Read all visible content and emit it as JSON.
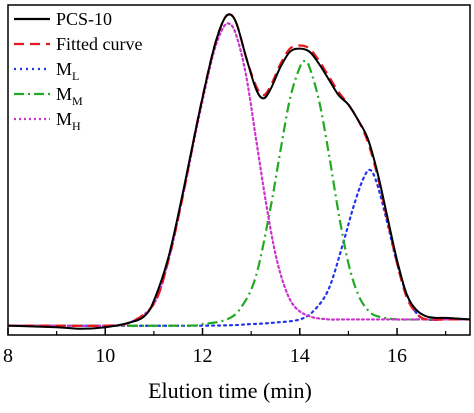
{
  "chart_data": {
    "type": "line",
    "title": "",
    "xlabel": "Elution time (min)",
    "ylabel": "",
    "xlim": [
      8,
      17.5
    ],
    "ylim": [
      -0.03,
      1.03
    ],
    "x_ticks": [
      8,
      10,
      12,
      14,
      16
    ],
    "x_tick_labels": [
      "8",
      "10",
      "12",
      "14",
      "16"
    ],
    "grid": false,
    "legend_position": "top-left",
    "series": [
      {
        "name": "PCS-10",
        "color": "#000000",
        "dash": "solid",
        "x": [
          8.0,
          9.0,
          9.5,
          10.0,
          10.5,
          10.8,
          11.0,
          11.3,
          11.6,
          11.9,
          12.2,
          12.4,
          12.55,
          12.7,
          12.9,
          13.1,
          13.25,
          13.4,
          13.6,
          13.8,
          14.0,
          14.2,
          14.4,
          14.6,
          14.8,
          15.0,
          15.2,
          15.4,
          15.6,
          15.8,
          16.0,
          16.2,
          16.4,
          16.6,
          16.8,
          17.0,
          17.5
        ],
        "y": [
          0.0,
          -0.005,
          -0.01,
          -0.005,
          0.01,
          0.03,
          0.08,
          0.22,
          0.43,
          0.66,
          0.87,
          0.97,
          1.0,
          0.97,
          0.86,
          0.76,
          0.73,
          0.76,
          0.83,
          0.88,
          0.89,
          0.88,
          0.84,
          0.79,
          0.74,
          0.71,
          0.66,
          0.6,
          0.49,
          0.35,
          0.21,
          0.1,
          0.05,
          0.03,
          0.025,
          0.025,
          0.02
        ]
      },
      {
        "name": "Fitted curve",
        "color": "#e8161f",
        "dash": "10,6",
        "x": [
          8.0,
          9.0,
          10.0,
          10.5,
          11.0,
          11.3,
          11.6,
          11.9,
          12.2,
          12.4,
          12.55,
          12.7,
          12.9,
          13.1,
          13.25,
          13.4,
          13.6,
          13.8,
          14.0,
          14.2,
          14.4,
          14.6,
          14.8,
          15.0,
          15.2,
          15.4,
          15.6,
          15.8,
          16.0,
          16.2,
          16.4,
          16.6,
          17.0,
          17.5
        ],
        "y": [
          0.0,
          0.0,
          0.0,
          0.01,
          0.07,
          0.21,
          0.42,
          0.66,
          0.87,
          0.97,
          1.0,
          0.97,
          0.86,
          0.77,
          0.74,
          0.77,
          0.84,
          0.89,
          0.9,
          0.89,
          0.85,
          0.8,
          0.75,
          0.71,
          0.66,
          0.59,
          0.48,
          0.34,
          0.2,
          0.09,
          0.04,
          0.02,
          0.02,
          0.02
        ]
      },
      {
        "name": "M_L",
        "color": "#2233ee",
        "dash": "2,4",
        "x": [
          8.0,
          12.0,
          13.0,
          13.5,
          14.0,
          14.3,
          14.6,
          14.9,
          15.1,
          15.3,
          15.45,
          15.6,
          15.8,
          16.0,
          16.2,
          16.4,
          16.6,
          17.0,
          17.5
        ],
        "y": [
          0.0,
          0.0,
          0.005,
          0.01,
          0.02,
          0.05,
          0.12,
          0.27,
          0.38,
          0.47,
          0.5,
          0.45,
          0.33,
          0.2,
          0.1,
          0.04,
          0.02,
          0.02,
          0.02
        ]
      },
      {
        "name": "M_M",
        "color": "#22aa22",
        "dash": "10,4,2,4",
        "x": [
          8.0,
          11.5,
          12.0,
          12.5,
          12.8,
          13.1,
          13.4,
          13.6,
          13.8,
          14.0,
          14.1,
          14.2,
          14.4,
          14.6,
          14.8,
          15.0,
          15.2,
          15.4,
          15.6,
          16.0,
          16.5,
          17.5
        ],
        "y": [
          0.0,
          0.0,
          0.005,
          0.02,
          0.06,
          0.16,
          0.38,
          0.56,
          0.73,
          0.83,
          0.85,
          0.83,
          0.72,
          0.55,
          0.36,
          0.2,
          0.1,
          0.05,
          0.03,
          0.02,
          0.02,
          0.02
        ]
      },
      {
        "name": "M_H",
        "color": "#cc33cc",
        "dash": "2,3",
        "x": [
          8.0,
          9.0,
          10.0,
          10.5,
          11.0,
          11.3,
          11.6,
          11.9,
          12.2,
          12.4,
          12.55,
          12.7,
          12.9,
          13.1,
          13.3,
          13.5,
          13.7,
          13.9,
          14.2,
          14.6,
          15.0,
          17.5
        ],
        "y": [
          0.0,
          0.0,
          0.0,
          0.01,
          0.07,
          0.21,
          0.42,
          0.65,
          0.86,
          0.95,
          0.97,
          0.93,
          0.8,
          0.6,
          0.4,
          0.23,
          0.12,
          0.06,
          0.03,
          0.02,
          0.02,
          0.02
        ]
      }
    ],
    "legend": [
      {
        "label": "PCS-10",
        "sub": ""
      },
      {
        "label": "Fitted curve",
        "sub": ""
      },
      {
        "label": "M",
        "sub": "L"
      },
      {
        "label": "M",
        "sub": "M"
      },
      {
        "label": "M",
        "sub": "H"
      }
    ]
  }
}
